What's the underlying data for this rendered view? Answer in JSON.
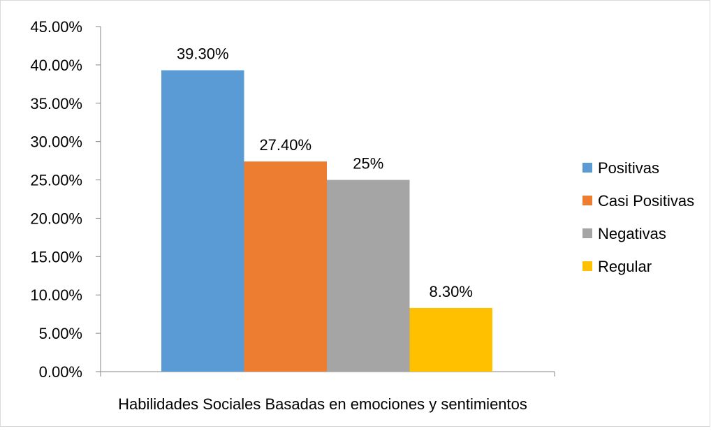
{
  "chart_data": {
    "type": "bar",
    "xlabel": "Habilidades Sociales Basadas en emociones y sentimientos",
    "ylabel": "",
    "ylim": [
      0,
      45
    ],
    "yticks": [
      "0.00%",
      "5.00%",
      "10.00%",
      "15.00%",
      "20.00%",
      "25.00%",
      "30.00%",
      "35.00%",
      "40.00%",
      "45.00%"
    ],
    "ytick_values": [
      0,
      5,
      10,
      15,
      20,
      25,
      30,
      35,
      40,
      45
    ],
    "grid": false,
    "legend_position": "right",
    "categories": [
      ""
    ],
    "series": [
      {
        "name": "Positivas",
        "values": [
          39.3
        ],
        "label": "39.30%",
        "color": "#5B9BD5"
      },
      {
        "name": "Casi Positivas",
        "values": [
          27.4
        ],
        "label": "27.40%",
        "color": "#ED7D31"
      },
      {
        "name": "Negativas",
        "values": [
          25
        ],
        "label": "25%",
        "color": "#A5A5A5"
      },
      {
        "name": "Regular",
        "values": [
          8.3
        ],
        "label": "8.30%",
        "color": "#FFC000"
      }
    ]
  }
}
